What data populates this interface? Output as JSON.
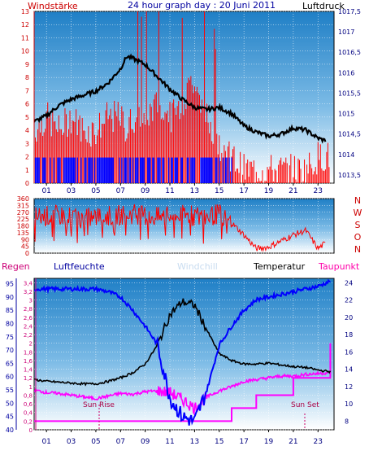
{
  "header": {
    "left_label": "Windstärke",
    "title": "24 hour graph day : 20 Juni 2011",
    "right_label": "Luftdruck"
  },
  "colors": {
    "wind": "#ff0000",
    "gust_blue": "#0000ff",
    "pressure": "#000000",
    "humidity": "#0000ff",
    "temperature": "#000000",
    "dewpoint": "#ff00ff",
    "windchill": "#c8dcf0",
    "rain": "#ff00ff",
    "axis_red": "#cc0000",
    "axis_blue": "#0000a0",
    "sky_top": "#1f7fc6",
    "sky_bottom": "#ffffff"
  },
  "x_axis": {
    "ticks": [
      "01",
      "03",
      "05",
      "07",
      "09",
      "11",
      "13",
      "15",
      "17",
      "19",
      "21",
      "23"
    ]
  },
  "panel_top": {
    "wind_ticks": [
      "0",
      "1",
      "2",
      "3",
      "4",
      "5",
      "6",
      "7",
      "8",
      "9",
      "10",
      "11",
      "12",
      "13"
    ],
    "pressure_ticks": [
      "1013,5",
      "1014",
      "1014,5",
      "1015",
      "1015,5",
      "1016",
      "1016,5",
      "1017",
      "1017,5"
    ]
  },
  "panel_mid": {
    "dir_ticks": [
      "0",
      "45",
      "90",
      "135",
      "180",
      "225",
      "270",
      "315",
      "360"
    ],
    "compass": [
      "N",
      "W",
      "S",
      "O",
      "N"
    ]
  },
  "panel_bottom": {
    "legend": {
      "rain": "Regen",
      "humidity": "Luftfeuchte",
      "windchill": "Windchill",
      "temperature": "Temperatur",
      "dewpoint": "Taupunkt"
    },
    "humidity_ticks": [
      "40",
      "45",
      "50",
      "55",
      "60",
      "65",
      "70",
      "75",
      "80",
      "85",
      "90",
      "95"
    ],
    "rain_ticks": [
      "0",
      "0,2",
      "0,4",
      "0,6",
      "0,8",
      "1",
      "1,2",
      "1,4",
      "1,6",
      "1,8",
      "2",
      "2,2",
      "2,4",
      "2,6",
      "2,8",
      "3",
      "3,2",
      "3,4"
    ],
    "temp_ticks": [
      "8",
      "10",
      "12",
      "14",
      "16",
      "18",
      "20",
      "22",
      "24"
    ],
    "sun_rise": "Sun Rise",
    "sun_set": "Sun Set"
  },
  "chart_data": [
    {
      "type": "line",
      "title": "24 hour graph day : 20 Juni 2011",
      "xlabel": "",
      "x": [
        0,
        1,
        2,
        3,
        4,
        5,
        6,
        7,
        7.5,
        8,
        9,
        10,
        11,
        12,
        13,
        14,
        15,
        16,
        17,
        18,
        19,
        20,
        21,
        22,
        23,
        23.5
      ],
      "series": [
        {
          "name": "Windstärke",
          "axis": "left",
          "ylim": [
            0,
            13
          ],
          "values": [
            4,
            5,
            4,
            5,
            4,
            4,
            5,
            5,
            4,
            5,
            5,
            6,
            5,
            6,
            8,
            5,
            3,
            2,
            1,
            1,
            1,
            1,
            1,
            1,
            2,
            2
          ]
        },
        {
          "name": "Luftdruck",
          "axis": "right",
          "ylim": [
            1013.3,
            1017.5
          ],
          "values": [
            1014.8,
            1014.95,
            1015.2,
            1015.35,
            1015.45,
            1015.55,
            1015.75,
            1016.1,
            1016.4,
            1016.35,
            1016.2,
            1015.9,
            1015.6,
            1015.35,
            1015.15,
            1015.1,
            1015.15,
            1015.0,
            1014.7,
            1014.55,
            1014.45,
            1014.5,
            1014.65,
            1014.6,
            1014.4,
            1014.35
          ]
        }
      ]
    },
    {
      "type": "line",
      "title": "",
      "xlabel": "",
      "x": [
        0,
        2,
        4,
        6,
        8,
        10,
        12,
        14,
        15,
        16,
        17,
        18,
        19,
        20,
        21,
        22,
        23,
        23.5
      ],
      "series": [
        {
          "name": "Windrichtung",
          "ylim": [
            0,
            360
          ],
          "values": [
            240,
            250,
            230,
            245,
            260,
            235,
            250,
            240,
            260,
            200,
            120,
            30,
            40,
            80,
            120,
            150,
            30,
            60
          ]
        }
      ]
    },
    {
      "type": "line",
      "title": "",
      "xlabel": "",
      "x": [
        0,
        1,
        2,
        3,
        4,
        5,
        6,
        7,
        8,
        9,
        10,
        11,
        12,
        13,
        14,
        15,
        16,
        17,
        18,
        19,
        20,
        21,
        22,
        23,
        24
      ],
      "series": [
        {
          "name": "Luftfeuchte",
          "axis": "left-humidity",
          "ylim": [
            40,
            97
          ],
          "values": [
            93,
            93,
            93,
            93,
            93,
            93,
            92,
            90,
            85,
            79,
            72,
            52,
            45,
            43,
            55,
            72,
            79,
            85,
            89,
            90,
            91,
            92,
            93,
            94,
            96
          ]
        },
        {
          "name": "Temperatur",
          "axis": "right",
          "ylim": [
            7,
            24.5
          ],
          "values": [
            12.8,
            12.6,
            12.5,
            12.4,
            12.3,
            12.3,
            12.6,
            13.0,
            13.6,
            14.6,
            16.8,
            20.3,
            21.8,
            21.4,
            18.5,
            15.8,
            15.0,
            14.6,
            14.6,
            14.7,
            14.5,
            14.3,
            14.2,
            13.9,
            13.7
          ]
        },
        {
          "name": "Taupunkt",
          "axis": "right",
          "ylim": [
            7,
            24.5
          ],
          "values": [
            11.6,
            11.3,
            11.2,
            11.0,
            10.8,
            10.6,
            10.9,
            11.2,
            11.1,
            11.4,
            11.5,
            11.3,
            10.5,
            9.5,
            10.8,
            11.5,
            12.0,
            12.6,
            12.8,
            13.0,
            13.2,
            13.2,
            13.4,
            13.5,
            13.6
          ]
        },
        {
          "name": "Regen",
          "axis": "left-rain",
          "ylim": [
            0,
            3.5
          ],
          "values": [
            0.2,
            0.2,
            0.2,
            0.2,
            0.2,
            0.2,
            0.2,
            0.2,
            0.2,
            0.2,
            0.2,
            0.2,
            0.2,
            0.2,
            0.2,
            0.2,
            0.5,
            0.5,
            0.8,
            0.8,
            0.8,
            1.2,
            1.2,
            1.2,
            2.0
          ]
        }
      ]
    }
  ]
}
